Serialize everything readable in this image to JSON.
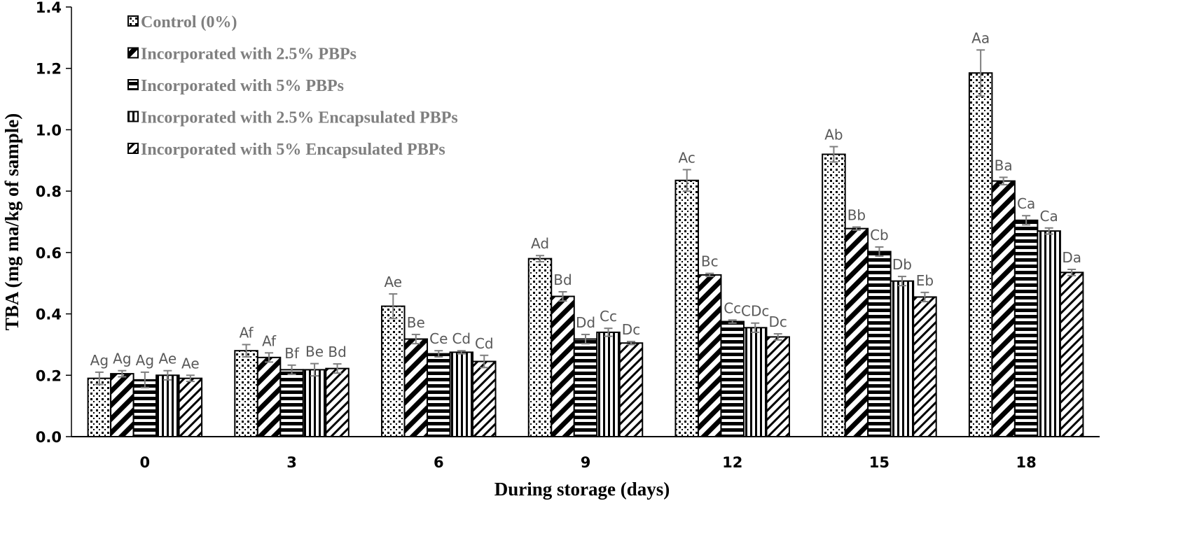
{
  "chart_data": {
    "type": "bar",
    "title": "",
    "xlabel": "During storage (days)",
    "ylabel": "TBA (mg ma/kg of sample)",
    "ylim": [
      0,
      1.4
    ],
    "yticks": [
      "0.0",
      "0.2",
      "0.4",
      "0.6",
      "0.8",
      "1.0",
      "1.2",
      "1.4"
    ],
    "ytick_values": [
      0,
      0.2,
      0.4,
      0.6,
      0.8,
      1.0,
      1.2,
      1.4
    ],
    "grid": false,
    "legend_position": "top-left",
    "categories": [
      "0",
      "3",
      "6",
      "9",
      "12",
      "15",
      "18"
    ],
    "series": [
      {
        "name": "Control (0%)",
        "pattern": "dots",
        "values": [
          0.19,
          0.28,
          0.425,
          0.58,
          0.835,
          0.92,
          1.185
        ],
        "errors": [
          0.02,
          0.02,
          0.04,
          0.01,
          0.035,
          0.025,
          0.075
        ],
        "labels": [
          "Ag",
          "Af",
          "Ae",
          "Ad",
          "Ac",
          "Ab",
          "Aa"
        ]
      },
      {
        "name": "Incorporated with 2.5% PBPs",
        "pattern": "wide-diagonal",
        "values": [
          0.205,
          0.258,
          0.318,
          0.457,
          0.527,
          0.678,
          0.833
        ],
        "errors": [
          0.01,
          0.015,
          0.015,
          0.015,
          0.005,
          0.005,
          0.012
        ],
        "labels": [
          "Ag",
          "Af",
          "Be",
          "Bd",
          "Bc",
          "Bb",
          "Ba"
        ]
      },
      {
        "name": "Incorporated with 5% PBPs",
        "pattern": "horizontal",
        "values": [
          0.185,
          0.218,
          0.27,
          0.318,
          0.375,
          0.603,
          0.705
        ],
        "errors": [
          0.025,
          0.015,
          0.01,
          0.015,
          0.005,
          0.015,
          0.015
        ],
        "labels": [
          "Ag",
          "Bf",
          "Ce",
          "Dd",
          "Cc",
          "Cb",
          "Ca"
        ]
      },
      {
        "name": "Incorporated with 2.5% Encapsulated PBPs",
        "pattern": "vertical",
        "values": [
          0.2,
          0.218,
          0.275,
          0.34,
          0.355,
          0.507,
          0.67
        ],
        "errors": [
          0.015,
          0.02,
          0.005,
          0.013,
          0.015,
          0.015,
          0.01
        ],
        "labels": [
          "Ae",
          "Be",
          "Cd",
          "Cc",
          "CDc",
          "Db",
          "Ca"
        ]
      },
      {
        "name": "Incorporated with 5% Encapsulated PBPs",
        "pattern": "narrow-diagonal",
        "values": [
          0.19,
          0.222,
          0.245,
          0.305,
          0.325,
          0.455,
          0.535
        ],
        "errors": [
          0.01,
          0.015,
          0.02,
          0.005,
          0.01,
          0.015,
          0.01
        ],
        "labels": [
          "Ae",
          "Bd",
          "Cd",
          "Dc",
          "Dc",
          "Eb",
          "Da"
        ]
      }
    ],
    "colors": {
      "bar_stroke": "#000000",
      "error_bar": "#7f7f7f",
      "label_text": "#595959",
      "legend_text": "#7f7f7f"
    }
  }
}
